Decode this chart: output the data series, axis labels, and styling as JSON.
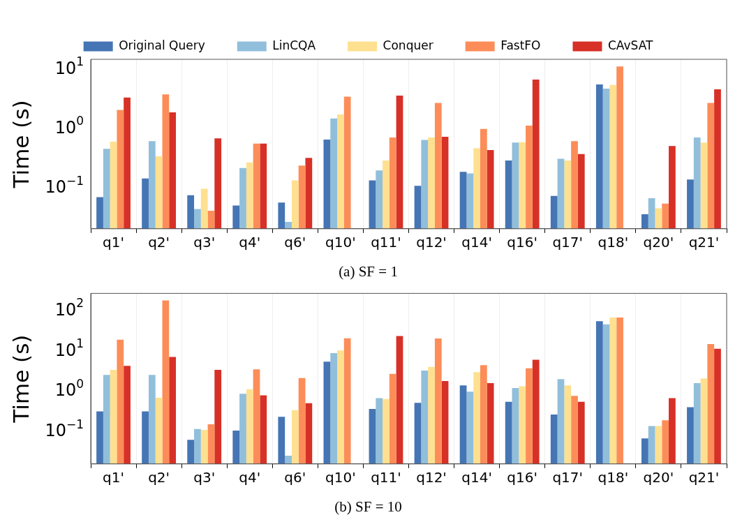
{
  "chart_data": [
    {
      "type": "bar",
      "title": "(a) SF = 1",
      "ylabel": "Time (s)",
      "log": "y",
      "grid": "x",
      "legend": "top",
      "categories": [
        "q1'",
        "q2'",
        "q3'",
        "q4'",
        "q6'",
        "q10'",
        "q11'",
        "q12'",
        "q14'",
        "q16'",
        "q17'",
        "q18'",
        "q20'",
        "q21'"
      ],
      "ylim": [
        0.02,
        14
      ],
      "yticks": [
        {
          "value": 0.1,
          "label": "10$^{−1}$"
        },
        {
          "value": 1,
          "label": "10$^{0}$"
        },
        {
          "value": 10,
          "label": "10$^{1}$"
        }
      ],
      "series": [
        {
          "name": "Original Query",
          "color": "#4575b4",
          "values": [
            0.068,
            0.14,
            0.073,
            0.049,
            0.055,
            0.63,
            0.13,
            0.105,
            0.18,
            0.28,
            0.071,
            5.3,
            0.035,
            0.134
          ]
        },
        {
          "name": "LinCQA",
          "color": "#91bfdb",
          "values": [
            0.44,
            0.59,
            0.043,
            0.21,
            0.026,
            1.42,
            0.19,
            0.62,
            0.17,
            0.56,
            0.3,
            4.5,
            0.065,
            0.68
          ]
        },
        {
          "name": "Conquer",
          "color": "#fee090",
          "values": [
            0.58,
            0.33,
            0.094,
            0.26,
            0.13,
            1.66,
            0.28,
            0.68,
            0.45,
            0.57,
            0.28,
            5.2,
            0.044,
            0.56
          ]
        },
        {
          "name": "FastFO",
          "color": "#fc8d59",
          "values": [
            1.98,
            3.6,
            0.04,
            0.54,
            0.23,
            3.3,
            0.68,
            2.6,
            0.95,
            1.08,
            0.59,
            10.6,
            0.053,
            2.6
          ]
        },
        {
          "name": "CAvSAT",
          "color": "#d73027",
          "values": [
            3.2,
            1.8,
            0.66,
            0.54,
            0.31,
            null,
            3.45,
            0.7,
            0.42,
            6.4,
            0.36,
            null,
            0.49,
            4.4
          ]
        }
      ]
    },
    {
      "type": "bar",
      "title": "(b) SF = 10",
      "ylabel": "Time (s)",
      "log": "y",
      "grid": "x",
      "categories": [
        "q1'",
        "q2'",
        "q3'",
        "q4'",
        "q6'",
        "q10'",
        "q11'",
        "q12'",
        "q14'",
        "q16'",
        "q17'",
        "q18'",
        "q20'",
        "q21'"
      ],
      "ylim": [
        0.015,
        250
      ],
      "yticks": [
        {
          "value": 0.1,
          "label": "10$^{−1}$"
        },
        {
          "value": 1,
          "label": "10$^{0}$"
        },
        {
          "value": 10,
          "label": "10$^{1}$"
        },
        {
          "value": 100,
          "label": "10$^{2}$"
        }
      ],
      "series": [
        {
          "color": "#4575b4",
          "values": [
            0.3,
            0.3,
            0.059,
            0.1,
            0.22,
            5.1,
            0.345,
            0.49,
            1.32,
            0.52,
            0.25,
            51,
            0.064,
            0.38
          ]
        },
        {
          "color": "#91bfdb",
          "values": [
            2.4,
            2.4,
            0.11,
            0.82,
            0.024,
            8.3,
            0.64,
            3.07,
            0.92,
            1.14,
            1.88,
            43,
            0.13,
            1.5
          ]
        },
        {
          "color": "#fee090",
          "values": [
            3.2,
            0.65,
            0.104,
            1.06,
            0.32,
            9.6,
            0.61,
            3.8,
            2.8,
            1.26,
            1.32,
            63,
            0.13,
            1.97
          ]
        },
        {
          "color": "#fc8d59",
          "values": [
            17.8,
            168,
            0.143,
            3.3,
            2.0,
            19.4,
            2.55,
            19.1,
            4.2,
            3.5,
            0.73,
            63,
            0.18,
            13.9
          ]
        },
        {
          "color": "#d73027",
          "values": [
            4.0,
            6.7,
            3.2,
            0.75,
            0.48,
            null,
            22,
            1.7,
            1.5,
            5.7,
            0.52,
            null,
            0.64,
            10.6
          ]
        }
      ]
    }
  ]
}
